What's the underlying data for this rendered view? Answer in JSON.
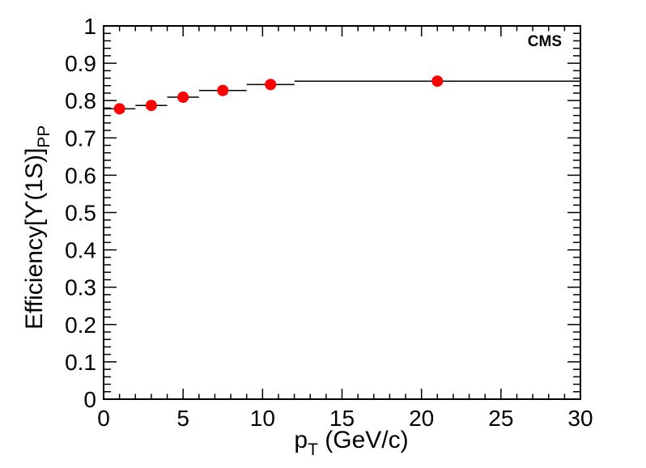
{
  "window": {
    "background": "#ffffff"
  },
  "header": {
    "experiment_label": "CMS"
  },
  "chart_data": {
    "type": "scatter",
    "title": "",
    "xlabel": "p_T (GeV/c)",
    "xlabel_parts": [
      {
        "t": "p"
      },
      {
        "t": "T",
        "sub": true
      },
      {
        "t": " (GeV/c)"
      }
    ],
    "ylabel": "Efficiency[Y(1S)]_PP",
    "ylabel_parts": [
      {
        "t": "Efficiency[ϒ(1S)]"
      },
      {
        "t": "PP",
        "sub": true
      }
    ],
    "xlim": [
      0,
      30
    ],
    "ylim": [
      0,
      1
    ],
    "x_major_ticks": [
      0,
      5,
      10,
      15,
      20,
      25,
      30
    ],
    "x_tick_labels": [
      "0",
      "5",
      "10",
      "15",
      "20",
      "25",
      "30"
    ],
    "x_minor_tick_step": 1,
    "y_major_ticks": [
      0,
      0.1,
      0.2,
      0.3,
      0.4,
      0.5,
      0.6,
      0.7,
      0.8,
      0.9,
      1
    ],
    "y_tick_labels": [
      "0",
      "0.1",
      "0.2",
      "0.3",
      "0.4",
      "0.5",
      "0.6",
      "0.7",
      "0.8",
      "0.9",
      "1"
    ],
    "y_minor_tick_step": 0.02,
    "grid": false,
    "legend": null,
    "annotations": [
      {
        "text": "CMS",
        "position": "top-right"
      }
    ],
    "colors": {
      "marker": "#ff0000",
      "axis": "#000000",
      "text": "#000000"
    },
    "series": [
      {
        "name": "Efficiency Upsilon(1S) PP",
        "marker": "filled-circle",
        "points": [
          {
            "x": 1.0,
            "y": 0.778,
            "xlow": 0.0,
            "xhigh": 2.0
          },
          {
            "x": 3.0,
            "y": 0.787,
            "xlow": 2.0,
            "xhigh": 4.0
          },
          {
            "x": 5.0,
            "y": 0.809,
            "xlow": 4.0,
            "xhigh": 6.0
          },
          {
            "x": 7.5,
            "y": 0.827,
            "xlow": 6.0,
            "xhigh": 9.0
          },
          {
            "x": 10.5,
            "y": 0.843,
            "xlow": 9.0,
            "xhigh": 12.0
          },
          {
            "x": 21.0,
            "y": 0.852,
            "xlow": 12.0,
            "xhigh": 30.0
          }
        ]
      }
    ]
  }
}
